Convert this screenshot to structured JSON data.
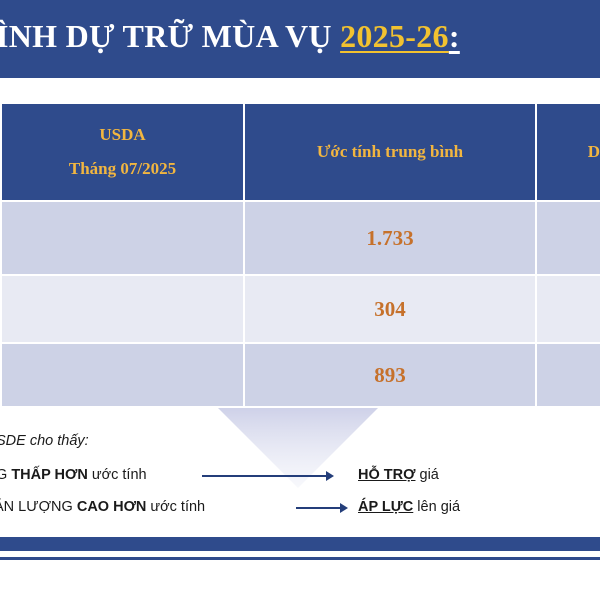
{
  "title": {
    "main": "ÌNH DỰ TRỮ MÙA VỤ ",
    "year": "2025-26",
    "colon": ":"
  },
  "table": {
    "col1_header_line1": "USDA",
    "col1_header_line2": "Tháng 07/2025",
    "col2_header": "Ước tính trung bình",
    "col3_header": "D",
    "rows": [
      {
        "estimate": "1.733"
      },
      {
        "estimate": "304"
      },
      {
        "estimate": "893"
      }
    ]
  },
  "notes": {
    "intro": "SDE cho thấy:",
    "line1_prefix": "G ",
    "line1_bold": "THẤP HƠN",
    "line1_suffix": " ước tính",
    "line1_result_bold": "HỖ TRỢ",
    "line1_result_suffix": " giá",
    "line2_prefix": "ẢN LƯỢNG ",
    "line2_bold": "CAO HƠN",
    "line2_suffix": " ước tính",
    "line2_result_bold": "ÁP LỰC",
    "line2_result_suffix": " lên giá"
  },
  "colors": {
    "navy": "#2f4b8c",
    "gold": "#f2b640",
    "orange": "#c6712b",
    "row_dark": "#cdd2e6",
    "row_light": "#e8eaf3"
  }
}
